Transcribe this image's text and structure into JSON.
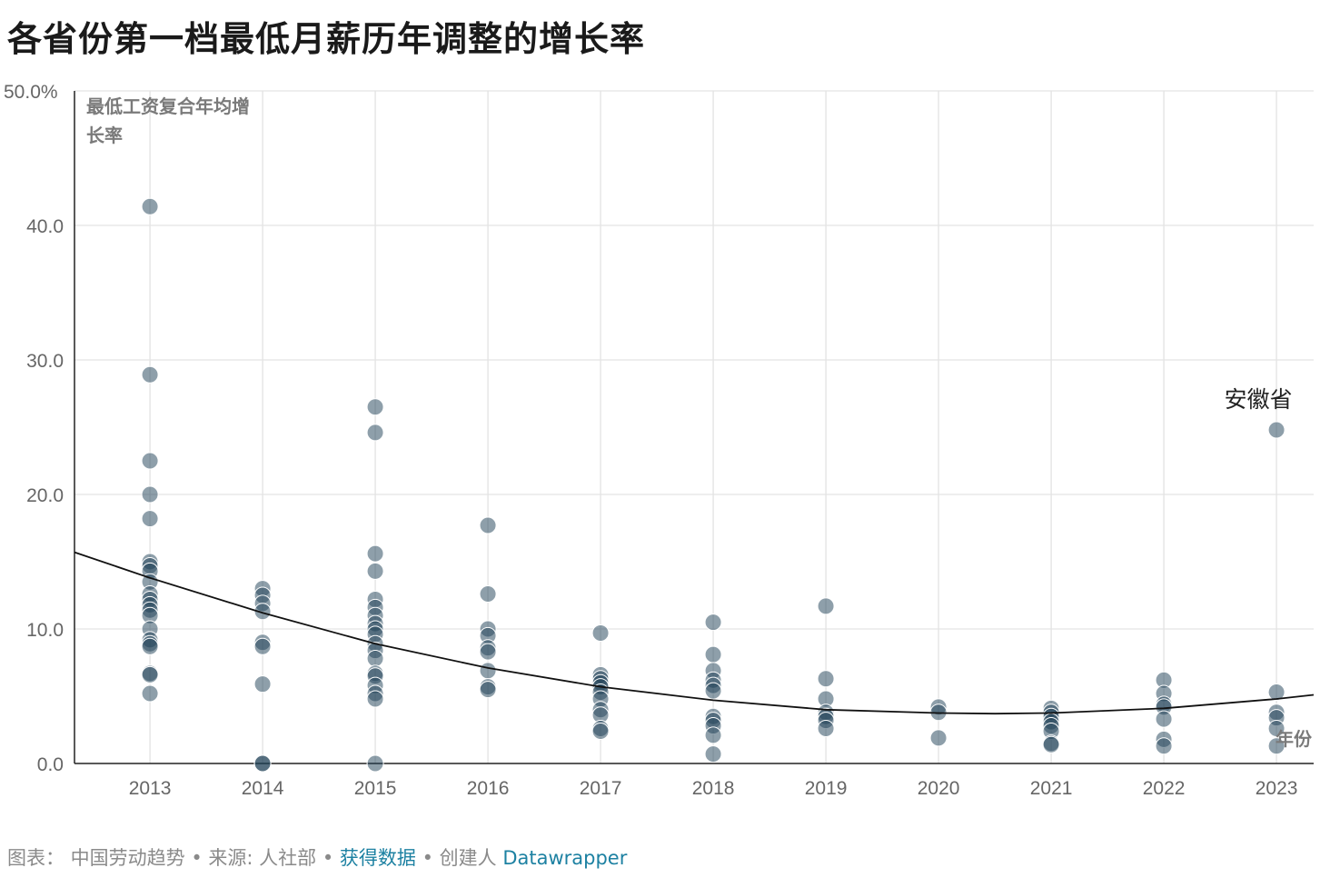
{
  "title": "各省份第一档最低月薪历年调整的增长率",
  "chart_data": {
    "type": "scatter",
    "title": "各省份第一档最低月薪历年调整的增长率",
    "ylabel": "最低工资复合年均增长率",
    "xlabel": "年份",
    "y_ticks": [
      "50.0%",
      "40.0",
      "30.0",
      "20.0",
      "10.0",
      "0.0"
    ],
    "x_ticks": [
      "2013",
      "2014",
      "2015",
      "2016",
      "2017",
      "2018",
      "2019",
      "2020",
      "2021",
      "2022",
      "2023"
    ],
    "ylim": [
      0,
      50
    ],
    "xlim": [
      2012.33,
      2023.33
    ],
    "grid": true,
    "point_color": "#1d3f55",
    "trend_color": "#111111",
    "annotations": [
      {
        "text": "安徽省",
        "x": 2023,
        "y": 24.8
      }
    ],
    "series": [
      {
        "points": [
          [
            2013,
            41.4
          ],
          [
            2013,
            28.9
          ],
          [
            2013,
            22.5
          ],
          [
            2013,
            20.0
          ],
          [
            2013,
            18.2
          ],
          [
            2013,
            15.0
          ],
          [
            2013,
            14.7
          ],
          [
            2013,
            14.3
          ],
          [
            2013,
            13.5
          ],
          [
            2013,
            12.6
          ],
          [
            2013,
            12.2
          ],
          [
            2013,
            11.8
          ],
          [
            2013,
            11.4
          ],
          [
            2013,
            11.0
          ],
          [
            2013,
            10.0
          ],
          [
            2013,
            9.2
          ],
          [
            2013,
            8.9
          ],
          [
            2013,
            8.7
          ],
          [
            2013,
            6.7
          ],
          [
            2013,
            6.6
          ],
          [
            2013,
            5.2
          ],
          [
            2014,
            13.0
          ],
          [
            2014,
            12.5
          ],
          [
            2014,
            11.9
          ],
          [
            2014,
            11.3
          ],
          [
            2014,
            9.0
          ],
          [
            2014,
            8.7
          ],
          [
            2014,
            5.9
          ],
          [
            2014,
            0.0
          ],
          [
            2014,
            0.0
          ],
          [
            2015,
            26.5
          ],
          [
            2015,
            24.6
          ],
          [
            2015,
            15.6
          ],
          [
            2015,
            14.3
          ],
          [
            2015,
            12.2
          ],
          [
            2015,
            11.6
          ],
          [
            2015,
            11.0
          ],
          [
            2015,
            10.4
          ],
          [
            2015,
            10.0
          ],
          [
            2015,
            9.6
          ],
          [
            2015,
            8.9
          ],
          [
            2015,
            8.4
          ],
          [
            2015,
            7.8
          ],
          [
            2015,
            6.7
          ],
          [
            2015,
            6.5
          ],
          [
            2015,
            5.8
          ],
          [
            2015,
            5.2
          ],
          [
            2015,
            4.8
          ],
          [
            2015,
            0.0
          ],
          [
            2016,
            17.7
          ],
          [
            2016,
            12.6
          ],
          [
            2016,
            10.0
          ],
          [
            2016,
            9.5
          ],
          [
            2016,
            8.6
          ],
          [
            2016,
            8.3
          ],
          [
            2016,
            6.9
          ],
          [
            2016,
            5.7
          ],
          [
            2016,
            5.5
          ],
          [
            2017,
            9.7
          ],
          [
            2017,
            6.6
          ],
          [
            2017,
            6.3
          ],
          [
            2017,
            6.0
          ],
          [
            2017,
            5.7
          ],
          [
            2017,
            5.3
          ],
          [
            2017,
            4.8
          ],
          [
            2017,
            4.0
          ],
          [
            2017,
            3.6
          ],
          [
            2017,
            2.6
          ],
          [
            2017,
            2.4
          ],
          [
            2018,
            10.5
          ],
          [
            2018,
            8.1
          ],
          [
            2018,
            6.9
          ],
          [
            2018,
            6.2
          ],
          [
            2018,
            5.8
          ],
          [
            2018,
            5.4
          ],
          [
            2018,
            3.5
          ],
          [
            2018,
            3.2
          ],
          [
            2018,
            2.8
          ],
          [
            2018,
            2.1
          ],
          [
            2018,
            0.7
          ],
          [
            2019,
            11.7
          ],
          [
            2019,
            6.3
          ],
          [
            2019,
            4.8
          ],
          [
            2019,
            3.8
          ],
          [
            2019,
            3.5
          ],
          [
            2019,
            3.2
          ],
          [
            2019,
            2.6
          ],
          [
            2020,
            4.2
          ],
          [
            2020,
            3.8
          ],
          [
            2020,
            1.9
          ],
          [
            2021,
            4.1
          ],
          [
            2021,
            3.8
          ],
          [
            2021,
            3.5
          ],
          [
            2021,
            3.1
          ],
          [
            2021,
            2.8
          ],
          [
            2021,
            2.4
          ],
          [
            2021,
            1.5
          ],
          [
            2021,
            1.4
          ],
          [
            2022,
            6.2
          ],
          [
            2022,
            5.2
          ],
          [
            2022,
            4.4
          ],
          [
            2022,
            4.2
          ],
          [
            2022,
            3.3
          ],
          [
            2022,
            1.8
          ],
          [
            2022,
            1.3
          ],
          [
            2023,
            24.8
          ],
          [
            2023,
            5.3
          ],
          [
            2023,
            3.8
          ],
          [
            2023,
            3.4
          ],
          [
            2023,
            2.6
          ],
          [
            2023,
            1.3
          ]
        ]
      }
    ],
    "trend": [
      [
        2012.33,
        15.7
      ],
      [
        2013,
        13.8
      ],
      [
        2014,
        11.2
      ],
      [
        2015,
        8.9
      ],
      [
        2016,
        7.1
      ],
      [
        2017,
        5.7
      ],
      [
        2018,
        4.7
      ],
      [
        2019,
        4.0
      ],
      [
        2020,
        3.75
      ],
      [
        2020.5,
        3.7
      ],
      [
        2021,
        3.75
      ],
      [
        2022,
        4.1
      ],
      [
        2023,
        4.8
      ],
      [
        2023.33,
        5.1
      ]
    ]
  },
  "footer": {
    "prefix": "图表： 中国劳动趋势 • 来源: 人社部 • ",
    "get_data": "获得数据",
    "middle": " • 创建人 ",
    "tool": "Datawrapper"
  }
}
